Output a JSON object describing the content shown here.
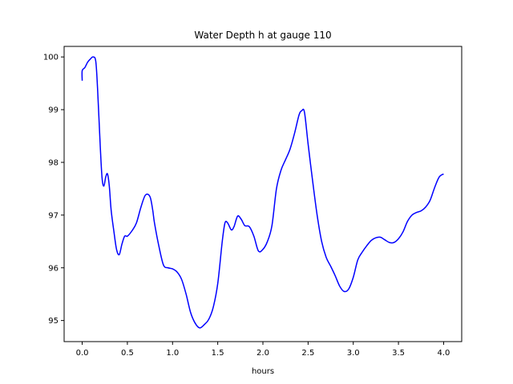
{
  "chart_data": {
    "type": "line",
    "title": "Water Depth h at gauge 110",
    "xlabel": "hours",
    "ylabel": "",
    "xlim": [
      -0.2,
      4.2
    ],
    "ylim": [
      94.6,
      100.2
    ],
    "xticks": [
      0.0,
      0.5,
      1.0,
      1.5,
      2.0,
      2.5,
      3.0,
      3.5,
      4.0
    ],
    "xtick_labels": [
      "0.0",
      "0.5",
      "1.0",
      "1.5",
      "2.0",
      "2.5",
      "3.0",
      "3.5",
      "4.0"
    ],
    "yticks": [
      95,
      96,
      97,
      98,
      99,
      100
    ],
    "ytick_labels": [
      "95",
      "96",
      "97",
      "98",
      "99",
      "100"
    ],
    "grid": false,
    "series": [
      {
        "color": "#0000ff",
        "x": [
          0.0,
          0.0,
          0.03,
          0.06,
          0.09,
          0.12,
          0.15,
          0.17,
          0.2,
          0.22,
          0.24,
          0.26,
          0.28,
          0.3,
          0.32,
          0.35,
          0.38,
          0.41,
          0.44,
          0.47,
          0.5,
          0.55,
          0.6,
          0.65,
          0.7,
          0.75,
          0.78,
          0.8,
          0.85,
          0.9,
          0.95,
          1.0,
          1.05,
          1.1,
          1.15,
          1.2,
          1.25,
          1.3,
          1.35,
          1.4,
          1.45,
          1.5,
          1.55,
          1.58,
          1.61,
          1.65,
          1.68,
          1.72,
          1.76,
          1.8,
          1.85,
          1.9,
          1.95,
          2.0,
          2.05,
          2.1,
          2.15,
          2.2,
          2.25,
          2.3,
          2.35,
          2.4,
          2.43,
          2.46,
          2.5,
          2.55,
          2.6,
          2.65,
          2.7,
          2.75,
          2.8,
          2.85,
          2.9,
          2.95,
          3.0,
          3.05,
          3.1,
          3.15,
          3.2,
          3.25,
          3.3,
          3.35,
          3.4,
          3.45,
          3.5,
          3.55,
          3.6,
          3.65,
          3.7,
          3.75,
          3.8,
          3.85,
          3.9,
          3.95,
          4.0
        ],
        "values": [
          99.55,
          99.74,
          99.8,
          99.9,
          99.96,
          100.0,
          99.92,
          99.4,
          98.3,
          97.7,
          97.55,
          97.72,
          97.78,
          97.55,
          97.1,
          96.7,
          96.35,
          96.25,
          96.45,
          96.6,
          96.6,
          96.7,
          96.85,
          97.15,
          97.38,
          97.35,
          97.1,
          96.85,
          96.4,
          96.05,
          96.0,
          95.98,
          95.92,
          95.78,
          95.5,
          95.15,
          94.95,
          94.86,
          94.92,
          95.02,
          95.25,
          95.7,
          96.5,
          96.85,
          96.85,
          96.72,
          96.78,
          96.98,
          96.92,
          96.8,
          96.78,
          96.6,
          96.32,
          96.35,
          96.5,
          96.8,
          97.5,
          97.85,
          98.05,
          98.25,
          98.55,
          98.9,
          98.98,
          98.95,
          98.35,
          97.65,
          97.0,
          96.5,
          96.2,
          96.03,
          95.85,
          95.65,
          95.55,
          95.6,
          95.82,
          96.15,
          96.3,
          96.42,
          96.52,
          96.57,
          96.58,
          96.53,
          96.48,
          96.48,
          96.55,
          96.68,
          96.88,
          97.0,
          97.05,
          97.08,
          97.15,
          97.28,
          97.52,
          97.72,
          97.78
        ]
      }
    ]
  }
}
